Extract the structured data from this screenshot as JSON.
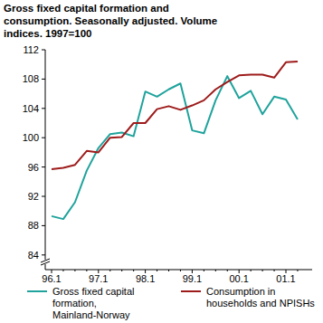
{
  "chart_data": {
    "type": "line",
    "title": "Gross fixed capital formation and consumption. Seasonally adjusted. Volume indices. 1997=100",
    "categories": [
      "96.1",
      null,
      null,
      null,
      "97.1",
      null,
      null,
      null,
      "98.1",
      null,
      null,
      null,
      "99.1",
      null,
      null,
      null,
      "00.1",
      null,
      null,
      null,
      "01.1",
      null
    ],
    "series": [
      {
        "name": "Gross fixed capital formation, Mainland-Norway",
        "color": "#1fa39c",
        "values": [
          89.3,
          88.9,
          91.2,
          95.5,
          98.6,
          100.5,
          100.7,
          100.2,
          106.3,
          105.6,
          106.6,
          107.4,
          101.0,
          100.6,
          105.1,
          108.4,
          105.4,
          106.4,
          103.2,
          105.6,
          105.2,
          102.5
        ]
      },
      {
        "name": "Consumption in households and NPISHs",
        "color": "#9e1b1b",
        "values": [
          95.7,
          95.9,
          96.3,
          98.2,
          98.0,
          100.0,
          100.1,
          102.0,
          102.0,
          103.9,
          104.3,
          103.8,
          104.4,
          105.1,
          106.6,
          107.6,
          108.5,
          108.6,
          108.6,
          108.2,
          110.3,
          110.4
        ]
      }
    ],
    "ylim": [
      82,
      112
    ],
    "yticks": [
      84,
      88,
      92,
      96,
      100,
      104,
      108,
      112
    ],
    "grid": false,
    "legend": "bottom"
  }
}
